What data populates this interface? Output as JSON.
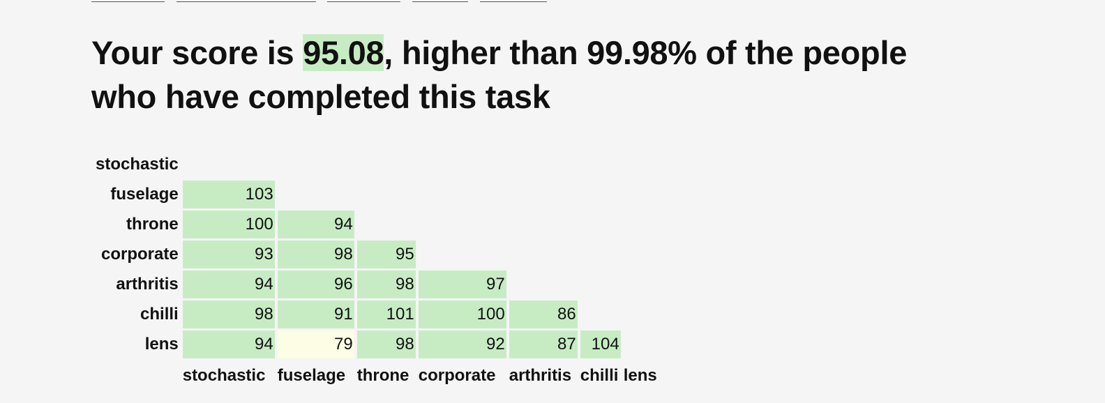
{
  "headline": {
    "prefix": "Your score is ",
    "score": "95.08",
    "suffix": ", higher than 99.98% of the people who have completed this task"
  },
  "matrix": {
    "row_labels": [
      "stochastic",
      "fuselage",
      "throne",
      "corporate",
      "arthritis",
      "chilli",
      "lens"
    ],
    "col_labels": [
      "stochastic",
      "fuselage",
      "throne",
      "corporate",
      "arthritis",
      "chilli",
      "lens"
    ],
    "rows": [
      [],
      [
        "103"
      ],
      [
        "100",
        "94"
      ],
      [
        "93",
        "98",
        "95"
      ],
      [
        "94",
        "96",
        "98",
        "97"
      ],
      [
        "98",
        "91",
        "101",
        "100",
        "86"
      ],
      [
        "94",
        "79",
        "98",
        "92",
        "87",
        "104"
      ]
    ],
    "colors": {
      "high": "#c7ecc4",
      "low": "#fdfde6"
    }
  }
}
